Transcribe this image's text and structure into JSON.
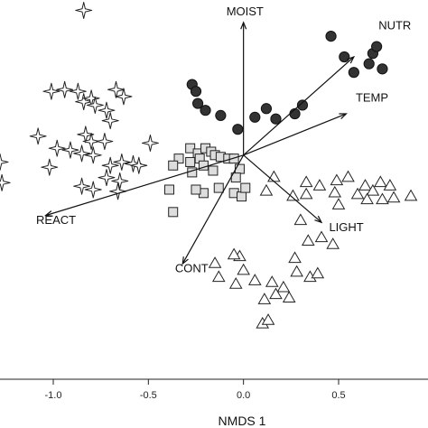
{
  "chart_data": {
    "type": "scatter",
    "xlabel": "NMDS 1",
    "ylabel": "",
    "xlim": [
      -1.28,
      0.97
    ],
    "ylim": [
      -1.0,
      1.2
    ],
    "x_ticks": [
      -1.0,
      -0.5,
      0.0,
      0.5
    ],
    "x_tick_labels": [
      "-1.0",
      "-0.5",
      "0.0",
      "0.5"
    ],
    "grid": false,
    "origin": [
      0.0,
      0.3
    ],
    "series": [
      {
        "marker": "circle",
        "color": "#333333",
        "points": [
          [
            -0.27,
            0.71
          ],
          [
            -0.25,
            0.67
          ],
          [
            -0.24,
            0.6
          ],
          [
            -0.2,
            0.56
          ],
          [
            -0.12,
            0.53
          ],
          [
            -0.03,
            0.45
          ],
          [
            0.06,
            0.52
          ],
          [
            0.12,
            0.57
          ],
          [
            0.17,
            0.51
          ],
          [
            0.27,
            0.54
          ],
          [
            0.31,
            0.59
          ],
          [
            0.46,
            0.99
          ],
          [
            0.53,
            0.87
          ],
          [
            0.58,
            0.78
          ],
          [
            0.66,
            0.83
          ],
          [
            0.68,
            0.89
          ],
          [
            0.7,
            0.93
          ],
          [
            0.73,
            0.8
          ]
        ]
      },
      {
        "marker": "star4",
        "color": "#ffffff",
        "points": [
          [
            -0.84,
            1.14
          ],
          [
            -1.01,
            0.67
          ],
          [
            -0.94,
            0.68
          ],
          [
            -0.87,
            0.67
          ],
          [
            -0.84,
            0.61
          ],
          [
            -0.8,
            0.63
          ],
          [
            -0.78,
            0.59
          ],
          [
            -0.67,
            0.68
          ],
          [
            -0.63,
            0.64
          ],
          [
            -0.72,
            0.56
          ],
          [
            -0.7,
            0.5
          ],
          [
            -1.08,
            0.41
          ],
          [
            -0.83,
            0.42
          ],
          [
            -0.8,
            0.38
          ],
          [
            -0.73,
            0.38
          ],
          [
            -0.98,
            0.34
          ],
          [
            -0.91,
            0.33
          ],
          [
            -0.85,
            0.31
          ],
          [
            -0.79,
            0.3
          ],
          [
            -0.49,
            0.37
          ],
          [
            -0.7,
            0.24
          ],
          [
            -0.64,
            0.26
          ],
          [
            -0.58,
            0.25
          ],
          [
            -0.55,
            0.24
          ],
          [
            -1.02,
            0.23
          ],
          [
            -0.72,
            0.17
          ],
          [
            -0.65,
            0.15
          ],
          [
            -0.85,
            0.12
          ],
          [
            -0.79,
            0.1
          ],
          [
            -0.66,
            0.09
          ],
          [
            -1.28,
            0.26
          ],
          [
            -1.27,
            0.14
          ]
        ]
      },
      {
        "marker": "square",
        "color": "#dddddd",
        "points": [
          [
            -0.28,
            0.34
          ],
          [
            -0.24,
            0.31
          ],
          [
            -0.2,
            0.34
          ],
          [
            -0.17,
            0.32
          ],
          [
            -0.15,
            0.3
          ],
          [
            -0.12,
            0.29
          ],
          [
            -0.08,
            0.28
          ],
          [
            -0.05,
            0.28
          ],
          [
            -0.34,
            0.28
          ],
          [
            -0.37,
            0.24
          ],
          [
            -0.28,
            0.26
          ],
          [
            -0.23,
            0.28
          ],
          [
            -0.21,
            0.24
          ],
          [
            -0.16,
            0.21
          ],
          [
            -0.02,
            0.22
          ],
          [
            -0.04,
            0.17
          ],
          [
            -0.27,
            0.2
          ],
          [
            -0.39,
            0.1
          ],
          [
            -0.21,
            0.08
          ],
          [
            -0.05,
            0.08
          ],
          [
            -0.01,
            0.06
          ],
          [
            0.01,
            0.11
          ],
          [
            -0.13,
            0.11
          ],
          [
            -0.37,
            -0.03
          ],
          [
            -0.25,
            0.1
          ]
        ]
      },
      {
        "marker": "triangle",
        "color": "#ffffff",
        "points": [
          [
            0.16,
            0.17
          ],
          [
            0.33,
            0.14
          ],
          [
            0.4,
            0.12
          ],
          [
            0.49,
            0.15
          ],
          [
            0.55,
            0.17
          ],
          [
            0.64,
            0.12
          ],
          [
            0.68,
            0.09
          ],
          [
            0.72,
            0.14
          ],
          [
            0.77,
            0.12
          ],
          [
            0.12,
            0.09
          ],
          [
            0.26,
            0.06
          ],
          [
            0.33,
            0.07
          ],
          [
            0.48,
            0.08
          ],
          [
            0.6,
            0.07
          ],
          [
            0.65,
            0.04
          ],
          [
            0.73,
            0.04
          ],
          [
            0.79,
            0.05
          ],
          [
            0.88,
            0.06
          ],
          [
            0.5,
            0.01
          ],
          [
            0.3,
            -0.08
          ],
          [
            0.34,
            -0.2
          ],
          [
            0.41,
            -0.18
          ],
          [
            0.47,
            -0.22
          ],
          [
            -0.02,
            -0.29
          ],
          [
            -0.05,
            -0.28
          ],
          [
            -0.15,
            -0.33
          ],
          [
            0.0,
            -0.37
          ],
          [
            0.27,
            -0.3
          ],
          [
            0.28,
            -0.38
          ],
          [
            0.35,
            -0.41
          ],
          [
            0.39,
            -0.39
          ],
          [
            -0.13,
            -0.41
          ],
          [
            -0.04,
            -0.45
          ],
          [
            0.06,
            -0.43
          ],
          [
            0.15,
            -0.44
          ],
          [
            0.21,
            -0.47
          ],
          [
            0.17,
            -0.51
          ],
          [
            0.11,
            -0.54
          ],
          [
            0.24,
            -0.53
          ],
          [
            0.1,
            -0.68
          ],
          [
            0.13,
            -0.66
          ]
        ]
      }
    ],
    "vectors": [
      {
        "label": "MOIST",
        "end": [
          0.0,
          1.07
        ],
        "label_pos": [
          -0.09,
          1.11
        ]
      },
      {
        "label": "NUTR",
        "end": [
          0.58,
          0.87
        ],
        "label_pos": [
          0.71,
          1.03
        ]
      },
      {
        "label": "TEMP",
        "end": [
          0.54,
          0.54
        ],
        "label_pos": [
          0.59,
          0.61
        ]
      },
      {
        "label": "LIGHT",
        "end": [
          0.41,
          -0.09
        ],
        "label_pos": [
          0.45,
          -0.14
        ]
      },
      {
        "label": "CONT",
        "end": [
          -0.32,
          -0.33
        ],
        "label_pos": [
          -0.36,
          -0.38
        ]
      },
      {
        "label": "REACT",
        "end": [
          -1.04,
          -0.05
        ],
        "label_pos": [
          -1.09,
          -0.1
        ]
      }
    ]
  }
}
